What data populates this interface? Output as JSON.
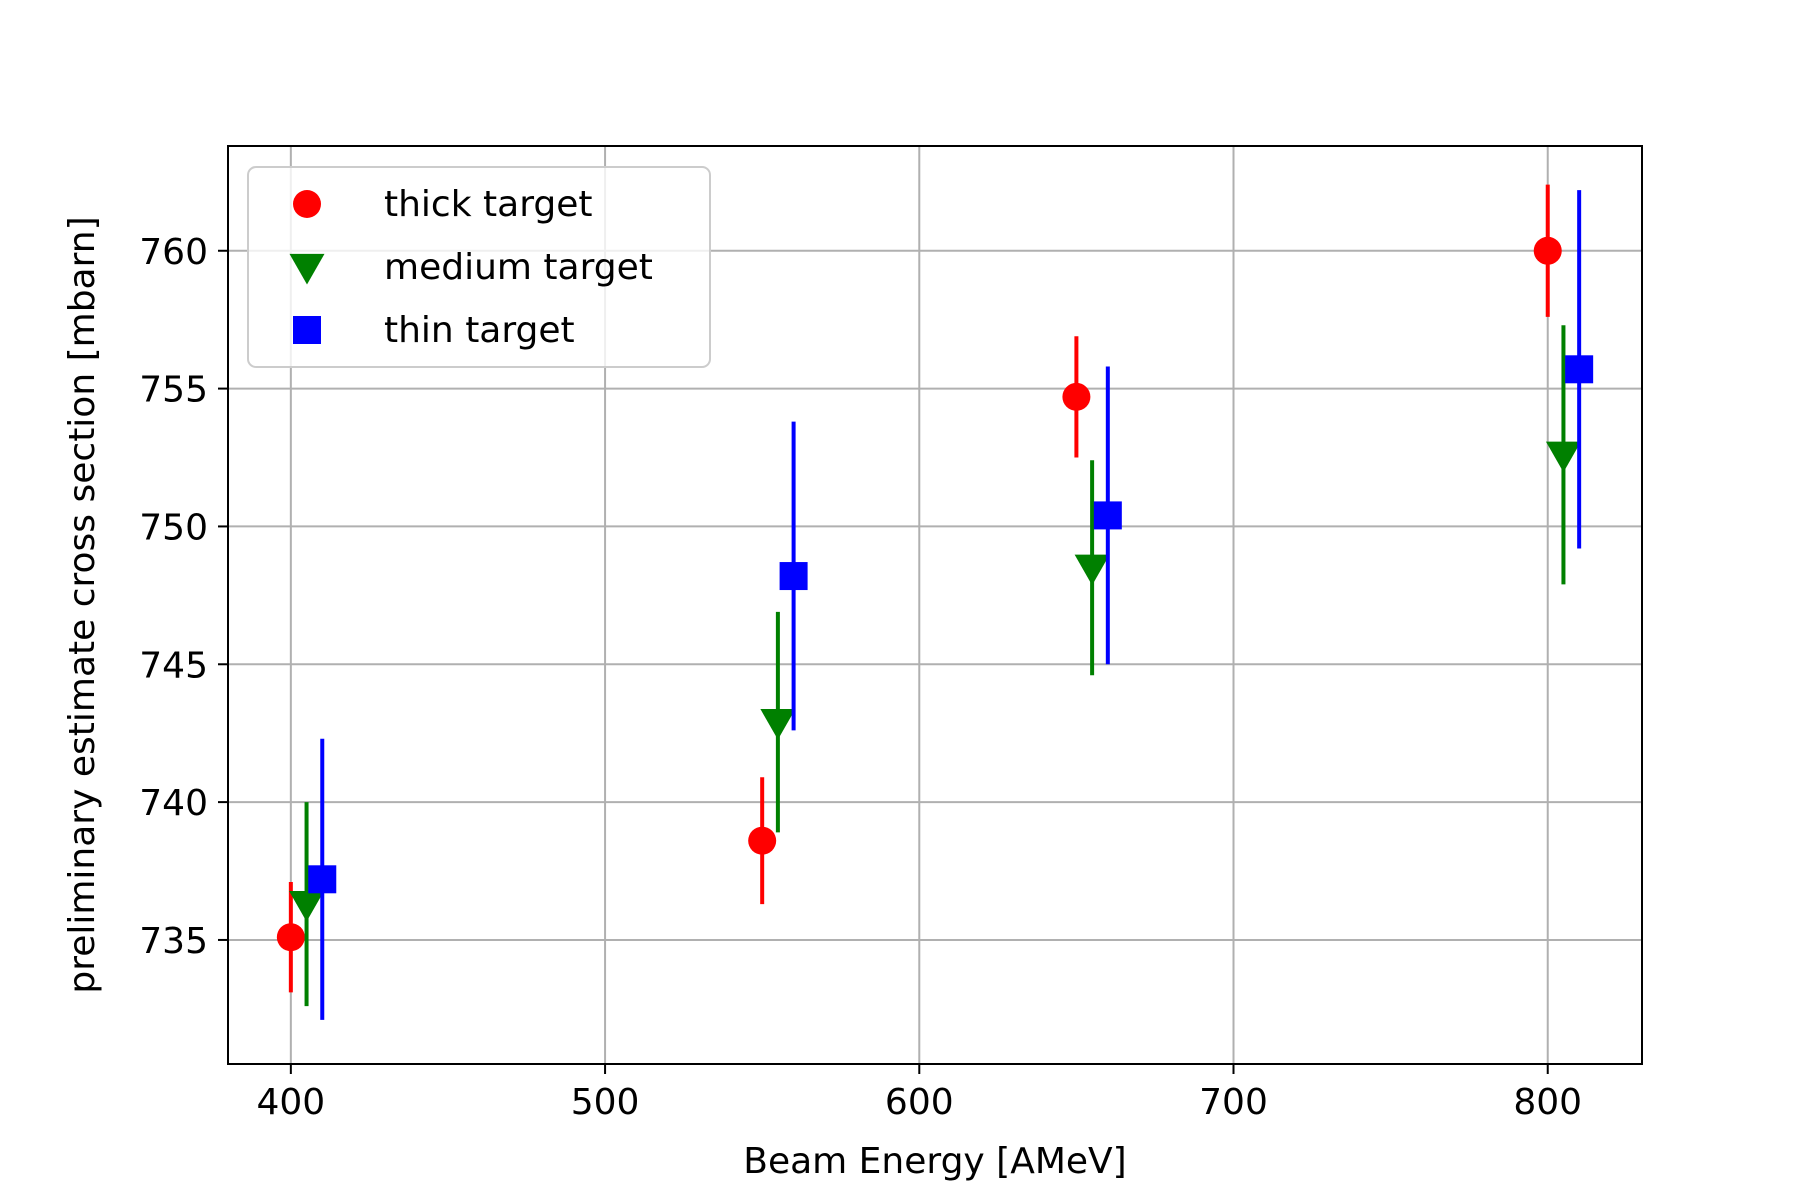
{
  "chart_data": {
    "type": "scatter",
    "xlabel": "Beam Energy [AMeV]",
    "ylabel": "preliminary estimate cross section [mbarn]",
    "xlim": [
      380,
      830
    ],
    "ylim": [
      730.5,
      763.8
    ],
    "xticks": [
      400,
      500,
      600,
      700,
      800
    ],
    "yticks": [
      735,
      740,
      745,
      750,
      755,
      760
    ],
    "grid": true,
    "legend_position": "top-left",
    "series": [
      {
        "name": "thick target",
        "marker": "circle",
        "color": "#ff0000",
        "x": [
          400,
          550,
          650,
          800
        ],
        "y": [
          735.1,
          738.6,
          754.7,
          760.0
        ],
        "yerr": [
          2.0,
          2.3,
          2.2,
          2.4
        ]
      },
      {
        "name": "medium target",
        "marker": "triangle-down",
        "color": "#008000",
        "x": [
          405,
          555,
          655,
          805
        ],
        "y": [
          736.3,
          742.9,
          748.5,
          752.6
        ],
        "yerr": [
          3.7,
          4.0,
          3.9,
          4.7
        ]
      },
      {
        "name": "thin target",
        "marker": "square",
        "color": "#0000ff",
        "x": [
          410,
          560,
          660,
          810
        ],
        "y": [
          737.2,
          748.2,
          750.4,
          755.7
        ],
        "yerr": [
          5.1,
          5.6,
          5.4,
          6.5
        ]
      }
    ]
  }
}
